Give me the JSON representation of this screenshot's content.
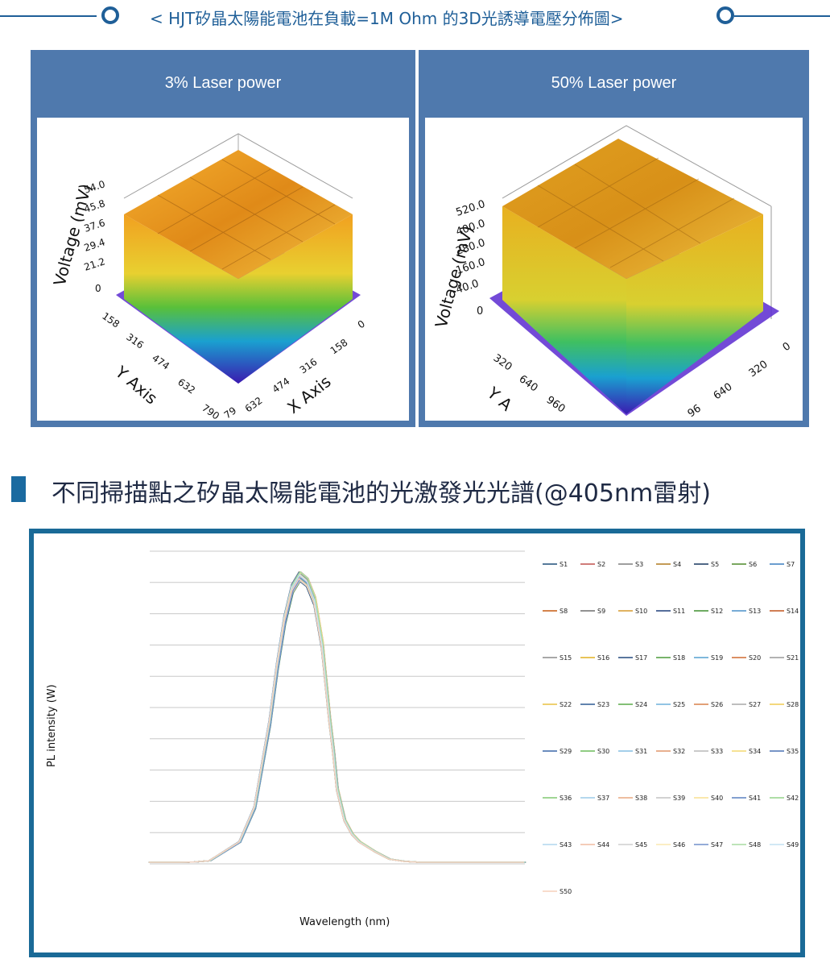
{
  "header": {
    "title": "< HJT矽晶太陽能電池在負載=1M Ohm 的3D光誘導電壓分佈圖>"
  },
  "panels": [
    {
      "title": "3% Laser power",
      "zlabel": "Voltage (mV)",
      "xlabel": "X Axis",
      "ylabel": "Y Axis",
      "zticks": [
        "0",
        "21.2",
        "29.4",
        "37.6",
        "45.8",
        "54.0"
      ],
      "yticks": [
        "158",
        "316",
        "474",
        "632",
        "790"
      ],
      "xticks": [
        "0",
        "158",
        "316",
        "474",
        "632",
        "79"
      ]
    },
    {
      "title": "50% Laser power",
      "zlabel": "Voltage (mV)",
      "xlabel": "",
      "ylabel": "Y A",
      "zticks": [
        "0",
        "40.0",
        "160.0",
        "280.0",
        "400.0",
        "520.0"
      ],
      "yticks": [
        "320",
        "640",
        "960"
      ],
      "xticks": [
        "0",
        "320",
        "640",
        "96"
      ]
    }
  ],
  "section": {
    "title": "不同掃描點之矽晶太陽能電池的光激發光光譜(@405nm雷射)"
  },
  "chart_data": {
    "type": "line",
    "title": "",
    "xlabel": "Wavelength (nm)",
    "ylabel": "PL intensity (W)",
    "ylim": [
      0,
      10
    ],
    "grid": true,
    "legend_position": "right",
    "x": [
      0,
      4,
      8,
      12,
      16,
      18,
      20,
      24,
      28,
      32,
      34,
      36,
      38,
      40,
      42,
      44,
      46,
      47,
      48,
      49,
      50,
      52,
      54,
      56,
      60,
      64,
      68,
      72,
      80,
      100
    ],
    "base_curve": [
      0.05,
      0.05,
      0.05,
      0.06,
      0.1,
      0.25,
      0.4,
      0.7,
      1.8,
      4.5,
      6.3,
      7.8,
      8.8,
      9.2,
      9.0,
      8.4,
      7.0,
      5.8,
      4.6,
      3.6,
      2.4,
      1.4,
      0.95,
      0.7,
      0.4,
      0.15,
      0.08,
      0.05,
      0.05,
      0.05
    ],
    "series": [
      {
        "name": "S1"
      },
      {
        "name": "S2"
      },
      {
        "name": "S3"
      },
      {
        "name": "S4"
      },
      {
        "name": "S5"
      },
      {
        "name": "S6"
      },
      {
        "name": "S7"
      },
      {
        "name": "S8"
      },
      {
        "name": "S9"
      },
      {
        "name": "S10"
      },
      {
        "name": "S11"
      },
      {
        "name": "S12"
      },
      {
        "name": "S13"
      },
      {
        "name": "S14"
      },
      {
        "name": "S15"
      },
      {
        "name": "S16"
      },
      {
        "name": "S17"
      },
      {
        "name": "S18"
      },
      {
        "name": "S19"
      },
      {
        "name": "S20"
      },
      {
        "name": "S21"
      },
      {
        "name": "S22"
      },
      {
        "name": "S23"
      },
      {
        "name": "S24"
      },
      {
        "name": "S25"
      },
      {
        "name": "S26"
      },
      {
        "name": "S27"
      },
      {
        "name": "S28"
      },
      {
        "name": "S29"
      },
      {
        "name": "S30"
      },
      {
        "name": "S31"
      },
      {
        "name": "S32"
      },
      {
        "name": "S33"
      },
      {
        "name": "S34"
      },
      {
        "name": "S35"
      },
      {
        "name": "S36"
      },
      {
        "name": "S37"
      },
      {
        "name": "S38"
      },
      {
        "name": "S39"
      },
      {
        "name": "S40"
      },
      {
        "name": "S41"
      },
      {
        "name": "S42"
      },
      {
        "name": "S43"
      },
      {
        "name": "S44"
      },
      {
        "name": "S45"
      },
      {
        "name": "S46"
      },
      {
        "name": "S47"
      },
      {
        "name": "S48"
      },
      {
        "name": "S49"
      },
      {
        "name": "S50"
      }
    ],
    "colors": [
      "#1f4e79",
      "#c0504d",
      "#7f7f7f",
      "#b07a1e",
      "#17375e",
      "#4e8a2a",
      "#3a7dbf",
      "#c55a11",
      "#6f6f6f",
      "#d69a2d",
      "#1f3f7a",
      "#3f8f2f",
      "#4a90c9",
      "#c0531d",
      "#8c8c8c",
      "#e0b020",
      "#244a7f",
      "#4b9b3a",
      "#55a0d0",
      "#d06a30",
      "#9a9a9a",
      "#e8c040",
      "#2d5a94",
      "#5aab48",
      "#6fb0dc",
      "#d8804a",
      "#a8a8a8",
      "#f0cc50",
      "#3a66a8",
      "#6cbb5a",
      "#86bfe4",
      "#e0966a",
      "#b8b8b8",
      "#f4d870",
      "#4a72b4",
      "#80c870",
      "#9ccbe8",
      "#e8a880",
      "#c4c4c4",
      "#f8e090",
      "#5a80c0",
      "#94d488",
      "#b0d6ee",
      "#f0bca0",
      "#cfcfcf",
      "#fae8b0",
      "#7090cc",
      "#a8dca0",
      "#c4e0f2",
      "#f6d0bc"
    ]
  }
}
